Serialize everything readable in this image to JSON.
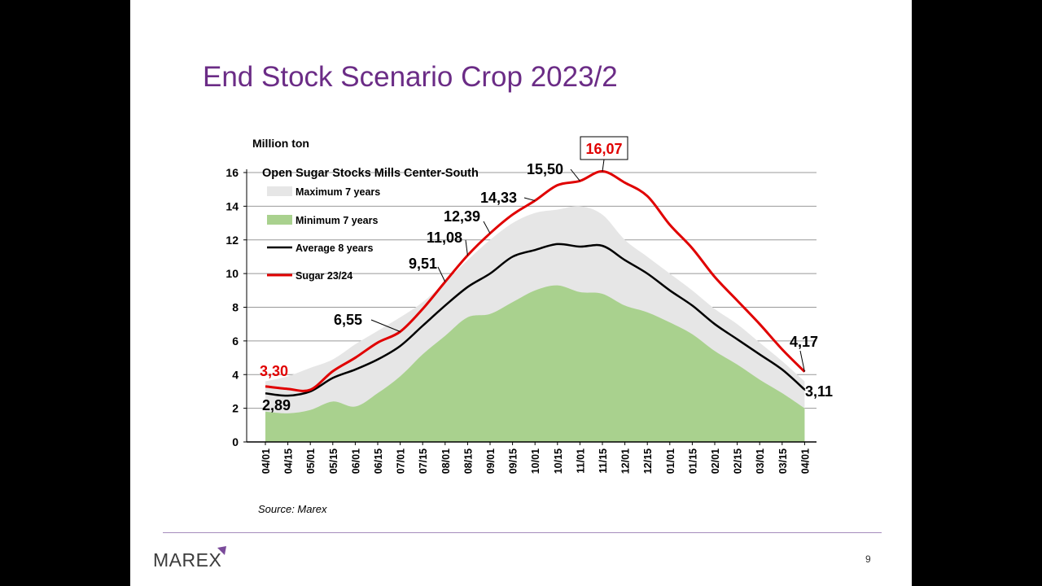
{
  "slide": {
    "title": "End Stock Scenario Crop 2023/2",
    "page_number": "9",
    "logo_text": "MAREX",
    "source": "Source: Marex"
  },
  "colors": {
    "title": "#6b2c86",
    "max_band": "#e6e6e6",
    "min_band": "#a9d18e",
    "average": "#000000",
    "sugar": "#e00000",
    "grid": "#999999",
    "footer_line": "#a58cbc"
  },
  "chart_data": {
    "type": "area",
    "title": "Open Sugar Stocks Mills Center-South",
    "ylabel": "Million ton",
    "xlabel": "",
    "ylim": [
      0,
      16
    ],
    "yticks": [
      "0",
      "2",
      "4",
      "6",
      "8",
      "10",
      "12",
      "14",
      "16"
    ],
    "grid": true,
    "legend_position": "top-left",
    "categories": [
      "04/01",
      "04/15",
      "05/01",
      "05/15",
      "06/01",
      "06/15",
      "07/01",
      "07/15",
      "08/01",
      "08/15",
      "09/01",
      "09/15",
      "10/01",
      "10/15",
      "11/01",
      "11/15",
      "12/01",
      "12/15",
      "01/01",
      "01/15",
      "02/01",
      "02/15",
      "03/01",
      "03/15",
      "04/01"
    ],
    "series": [
      {
        "name": "Maximum 7 years",
        "type": "area",
        "values": [
          3.6,
          3.9,
          4.4,
          4.9,
          5.8,
          6.6,
          7.4,
          8.3,
          9.5,
          10.8,
          12.0,
          13.0,
          13.6,
          13.8,
          14.0,
          13.5,
          12.0,
          11.0,
          10.0,
          9.0,
          7.9,
          7.0,
          5.9,
          4.8,
          3.6
        ]
      },
      {
        "name": "Minimum 7 years",
        "type": "area",
        "values": [
          1.8,
          1.7,
          1.9,
          2.4,
          2.1,
          2.9,
          3.9,
          5.2,
          6.3,
          7.4,
          7.6,
          8.3,
          9.0,
          9.3,
          8.9,
          8.8,
          8.1,
          7.7,
          7.1,
          6.4,
          5.4,
          4.6,
          3.7,
          2.9,
          2.0
        ]
      },
      {
        "name": "Average 8 years",
        "type": "line",
        "values": [
          2.89,
          2.75,
          3.0,
          3.8,
          4.3,
          4.9,
          5.7,
          6.9,
          8.1,
          9.2,
          10.0,
          11.0,
          11.4,
          11.75,
          11.6,
          11.65,
          10.8,
          10.0,
          9.0,
          8.1,
          7.0,
          6.1,
          5.2,
          4.3,
          3.11
        ]
      },
      {
        "name": "Sugar 23/24",
        "type": "line",
        "values": [
          3.3,
          3.15,
          3.1,
          4.2,
          5.0,
          5.9,
          6.55,
          7.9,
          9.51,
          11.08,
          12.39,
          13.5,
          14.33,
          15.25,
          15.5,
          16.07,
          15.4,
          14.6,
          12.9,
          11.5,
          9.8,
          8.4,
          7.0,
          5.5,
          4.17
        ]
      }
    ],
    "annotations": [
      {
        "label": "3,30",
        "series": "Sugar 23/24",
        "index": 0,
        "style": "red"
      },
      {
        "label": "2,89",
        "series": "Average 8 years",
        "index": 0,
        "style": "plain"
      },
      {
        "label": "6,55",
        "series": "Sugar 23/24",
        "index": 6,
        "style": "plain"
      },
      {
        "label": "9,51",
        "series": "Sugar 23/24",
        "index": 8,
        "style": "plain"
      },
      {
        "label": "11,08",
        "series": "Sugar 23/24",
        "index": 9,
        "style": "plain"
      },
      {
        "label": "12,39",
        "series": "Sugar 23/24",
        "index": 10,
        "style": "plain"
      },
      {
        "label": "14,33",
        "series": "Sugar 23/24",
        "index": 12,
        "style": "plain"
      },
      {
        "label": "15,50",
        "series": "Sugar 23/24",
        "index": 14,
        "style": "plain"
      },
      {
        "label": "16,07",
        "series": "Sugar 23/24",
        "index": 15,
        "style": "boxed-red"
      },
      {
        "label": "4,17",
        "series": "Sugar 23/24",
        "index": 24,
        "style": "plain"
      },
      {
        "label": "3,11",
        "series": "Average 8 years",
        "index": 24,
        "style": "plain"
      }
    ]
  }
}
